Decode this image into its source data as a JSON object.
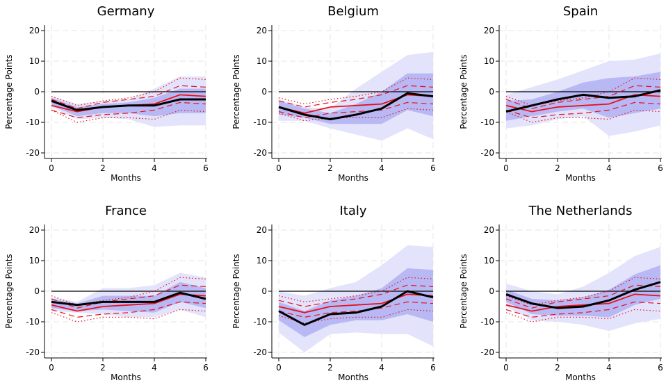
{
  "chart_data": [
    {
      "type": "line",
      "title": "Germany",
      "xlabel": "Months",
      "ylabel": "Percentage Points",
      "xlim": [
        0,
        6
      ],
      "ylim": [
        -20,
        20
      ],
      "xticks": [
        0,
        2,
        4,
        6
      ],
      "yticks": [
        20,
        10,
        0,
        -10,
        -20
      ],
      "x": [
        0,
        1,
        2,
        3,
        4,
        5,
        6
      ],
      "grid": true,
      "legend": "none",
      "series": [
        {
          "role": "wide_band",
          "color": "#e3e3fb",
          "upper": [
            -1.5,
            -4.0,
            -3.0,
            -2.5,
            1.0,
            5.0,
            5.0
          ],
          "lower": [
            -5.0,
            -9.0,
            -8.5,
            -9.0,
            -11.5,
            -11.0,
            -11.0
          ]
        },
        {
          "role": "narrow_band",
          "color": "#b8b8f4",
          "upper": [
            -2.0,
            -5.0,
            -4.0,
            -3.5,
            -2.0,
            1.0,
            1.0
          ],
          "lower": [
            -4.5,
            -8.0,
            -7.0,
            -7.0,
            -8.0,
            -7.0,
            -7.0
          ]
        },
        {
          "role": "red_dotted",
          "color": "#e8101a",
          "values": [
            -1.5,
            -4.5,
            -3.0,
            -2.0,
            0.0,
            4.5,
            4.0
          ],
          "values_lower": [
            -6.0,
            -10.0,
            -8.5,
            -8.5,
            -9.0,
            -6.0,
            -6.5
          ]
        },
        {
          "role": "red_dashed",
          "color": "#e8101a",
          "values": [
            -2.5,
            -5.5,
            -3.5,
            -2.5,
            -1.5,
            2.0,
            1.5
          ],
          "values_lower": [
            -6.0,
            -8.5,
            -7.5,
            -7.0,
            -6.0,
            -3.5,
            -4.0
          ]
        },
        {
          "role": "red_mean",
          "color": "#e8101a",
          "values": [
            -4.5,
            -6.5,
            -5.0,
            -4.5,
            -4.0,
            -1.0,
            -1.5
          ]
        },
        {
          "role": "point_estimate",
          "color": "#000000",
          "values": [
            -3.0,
            -6.0,
            -5.0,
            -4.5,
            -4.5,
            -2.5,
            -2.5
          ]
        }
      ]
    },
    {
      "type": "line",
      "title": "Belgium",
      "xlabel": "Months",
      "ylabel": "Percentage Points",
      "xlim": [
        0,
        6
      ],
      "ylim": [
        -20,
        20
      ],
      "xticks": [
        0,
        2,
        4,
        6
      ],
      "yticks": [
        20,
        10,
        0,
        -10,
        -20
      ],
      "x": [
        0,
        1,
        2,
        3,
        4,
        5,
        6
      ],
      "grid": true,
      "legend": "none",
      "series": [
        {
          "role": "wide_band",
          "color": "#e3e3fb",
          "upper": [
            -2.5,
            -5.0,
            -5.5,
            1.0,
            6.5,
            12.0,
            13.0
          ],
          "lower": [
            -9.5,
            -9.5,
            -12.0,
            -14.0,
            -16.0,
            -12.0,
            -15.5
          ]
        },
        {
          "role": "narrow_band",
          "color": "#b8b8f4",
          "upper": [
            -3.0,
            -5.5,
            -7.0,
            -4.0,
            0.0,
            6.0,
            6.0
          ],
          "lower": [
            -7.5,
            -8.5,
            -10.5,
            -10.5,
            -10.5,
            -6.0,
            -8.0
          ]
        },
        {
          "role": "red_dotted",
          "color": "#e8101a",
          "values": [
            -2.0,
            -4.0,
            -2.5,
            -1.5,
            0.0,
            4.5,
            4.0
          ],
          "values_lower": [
            -7.0,
            -9.5,
            -8.5,
            -8.5,
            -8.5,
            -5.5,
            -6.0
          ]
        },
        {
          "role": "red_dashed",
          "color": "#e8101a",
          "values": [
            -3.0,
            -5.0,
            -3.5,
            -2.5,
            -1.0,
            2.0,
            1.5
          ],
          "values_lower": [
            -6.5,
            -8.5,
            -7.0,
            -6.5,
            -6.0,
            -3.5,
            -4.0
          ]
        },
        {
          "role": "red_mean",
          "color": "#e8101a",
          "values": [
            -5.0,
            -7.0,
            -5.0,
            -4.5,
            -4.0,
            -1.0,
            -1.5
          ]
        },
        {
          "role": "point_estimate",
          "color": "#000000",
          "values": [
            -5.0,
            -7.5,
            -9.0,
            -7.5,
            -5.5,
            -0.5,
            -1.5
          ]
        }
      ]
    },
    {
      "type": "line",
      "title": "Spain",
      "xlabel": "Months",
      "ylabel": "Percentage Points",
      "xlim": [
        0,
        6
      ],
      "ylim": [
        -20,
        20
      ],
      "xticks": [
        0,
        2,
        4,
        6
      ],
      "yticks": [
        20,
        10,
        0,
        -10,
        -20
      ],
      "x": [
        0,
        1,
        2,
        3,
        4,
        5,
        6
      ],
      "grid": true,
      "legend": "none",
      "series": [
        {
          "role": "wide_band",
          "color": "#e3e3fb",
          "upper": [
            -1.0,
            1.5,
            4.0,
            7.0,
            10.0,
            10.5,
            12.5
          ],
          "lower": [
            -12.0,
            -11.0,
            -9.0,
            -8.0,
            -14.5,
            -13.0,
            -11.0
          ]
        },
        {
          "role": "narrow_band",
          "color": "#b8b8f4",
          "upper": [
            -3.0,
            -2.5,
            0.0,
            3.0,
            4.5,
            5.0,
            6.5
          ],
          "lower": [
            -9.5,
            -8.0,
            -6.5,
            -5.5,
            -8.5,
            -7.0,
            -5.5
          ]
        },
        {
          "role": "red_dotted",
          "color": "#e8101a",
          "values": [
            -1.5,
            -4.5,
            -3.0,
            -2.0,
            0.0,
            4.5,
            4.0
          ],
          "values_lower": [
            -6.5,
            -10.0,
            -8.5,
            -8.5,
            -9.0,
            -6.0,
            -6.5
          ]
        },
        {
          "role": "red_dashed",
          "color": "#e8101a",
          "values": [
            -2.5,
            -5.5,
            -3.5,
            -2.5,
            -1.5,
            2.0,
            1.5
          ],
          "values_lower": [
            -6.0,
            -8.5,
            -7.5,
            -7.0,
            -6.0,
            -3.5,
            -4.0
          ]
        },
        {
          "role": "red_mean",
          "color": "#e8101a",
          "values": [
            -4.5,
            -6.5,
            -5.0,
            -4.5,
            -4.0,
            -1.0,
            -1.5
          ]
        },
        {
          "role": "point_estimate",
          "color": "#000000",
          "values": [
            -6.5,
            -4.5,
            -2.5,
            -1.0,
            -2.0,
            -1.5,
            0.5
          ]
        }
      ]
    },
    {
      "type": "line",
      "title": "France",
      "xlabel": "Months",
      "ylabel": "Percentage Points",
      "xlim": [
        0,
        6
      ],
      "ylim": [
        -20,
        20
      ],
      "xticks": [
        0,
        2,
        4,
        6
      ],
      "yticks": [
        20,
        10,
        0,
        -10,
        -20
      ],
      "x": [
        0,
        1,
        2,
        3,
        4,
        5,
        6
      ],
      "grid": true,
      "legend": "none",
      "series": [
        {
          "role": "wide_band",
          "color": "#e3e3fb",
          "upper": [
            -2.0,
            -3.5,
            1.0,
            1.0,
            2.0,
            6.0,
            4.5
          ],
          "lower": [
            -6.5,
            -7.0,
            -7.5,
            -8.5,
            -8.5,
            -6.0,
            -8.5
          ]
        },
        {
          "role": "narrow_band",
          "color": "#b8b8f4",
          "upper": [
            -2.5,
            -4.0,
            -1.5,
            -1.5,
            -1.5,
            3.0,
            1.0
          ],
          "lower": [
            -5.5,
            -6.5,
            -6.0,
            -6.5,
            -7.0,
            -3.5,
            -5.5
          ]
        },
        {
          "role": "red_dotted",
          "color": "#e8101a",
          "values": [
            -1.5,
            -4.5,
            -3.0,
            -2.0,
            0.0,
            4.5,
            4.0
          ],
          "values_lower": [
            -7.0,
            -10.0,
            -8.5,
            -8.5,
            -9.0,
            -6.0,
            -6.5
          ]
        },
        {
          "role": "red_dashed",
          "color": "#e8101a",
          "values": [
            -2.5,
            -5.5,
            -3.5,
            -2.5,
            -1.5,
            2.0,
            1.5
          ],
          "values_lower": [
            -6.0,
            -8.5,
            -7.5,
            -7.0,
            -6.0,
            -3.5,
            -4.0
          ]
        },
        {
          "role": "red_mean",
          "color": "#e8101a",
          "values": [
            -4.5,
            -6.5,
            -5.0,
            -4.5,
            -4.0,
            -1.0,
            -1.5
          ]
        },
        {
          "role": "point_estimate",
          "color": "#000000",
          "values": [
            -3.5,
            -4.5,
            -3.5,
            -3.5,
            -3.5,
            -0.5,
            -2.5
          ]
        }
      ]
    },
    {
      "type": "line",
      "title": "Italy",
      "xlabel": "Months",
      "ylabel": "Percentage Points",
      "xlim": [
        0,
        6
      ],
      "ylim": [
        -20,
        20
      ],
      "xticks": [
        0,
        2,
        4,
        6
      ],
      "yticks": [
        20,
        10,
        0,
        -10,
        -20
      ],
      "x": [
        0,
        1,
        2,
        3,
        4,
        5,
        6
      ],
      "grid": true,
      "legend": "none",
      "series": [
        {
          "role": "wide_band",
          "color": "#e3e3fb",
          "upper": [
            0.0,
            -1.5,
            1.0,
            3.0,
            8.5,
            15.0,
            14.5
          ],
          "lower": [
            -13.5,
            -20.0,
            -14.0,
            -13.5,
            -14.0,
            -14.0,
            -18.0
          ]
        },
        {
          "role": "narrow_band",
          "color": "#b8b8f4",
          "upper": [
            -3.5,
            -6.5,
            -3.0,
            -1.5,
            1.0,
            7.5,
            7.0
          ],
          "lower": [
            -9.5,
            -15.0,
            -11.0,
            -9.5,
            -9.5,
            -7.5,
            -10.0
          ]
        },
        {
          "role": "red_dotted",
          "color": "#e8101a",
          "values": [
            -1.5,
            -3.5,
            -2.5,
            -1.5,
            0.0,
            4.5,
            4.0
          ],
          "values_lower": [
            -8.0,
            -10.5,
            -9.0,
            -8.5,
            -8.5,
            -6.0,
            -6.5
          ]
        },
        {
          "role": "red_dashed",
          "color": "#e8101a",
          "values": [
            -3.0,
            -5.0,
            -3.5,
            -2.5,
            -1.0,
            2.0,
            1.5
          ],
          "values_lower": [
            -6.5,
            -8.5,
            -7.0,
            -6.5,
            -5.5,
            -3.5,
            -4.0
          ]
        },
        {
          "role": "red_mean",
          "color": "#e8101a",
          "values": [
            -5.0,
            -7.0,
            -5.0,
            -4.5,
            -4.0,
            -1.0,
            -1.5
          ]
        },
        {
          "role": "point_estimate",
          "color": "#000000",
          "values": [
            -6.5,
            -11.0,
            -7.5,
            -7.0,
            -5.0,
            0.0,
            -2.0
          ]
        }
      ]
    },
    {
      "type": "line",
      "title": "The Netherlands",
      "xlabel": "Months",
      "ylabel": "Percentage Points",
      "xlim": [
        0,
        6
      ],
      "ylim": [
        -20,
        20
      ],
      "xticks": [
        0,
        2,
        4,
        6
      ],
      "yticks": [
        20,
        10,
        0,
        -10,
        -20
      ],
      "x": [
        0,
        1,
        2,
        3,
        4,
        5,
        6
      ],
      "grid": true,
      "legend": "none",
      "series": [
        {
          "role": "wide_band",
          "color": "#e3e3fb",
          "upper": [
            2.5,
            0.0,
            -1.0,
            1.5,
            6.0,
            11.5,
            14.5
          ],
          "lower": [
            -5.0,
            -9.5,
            -10.0,
            -11.0,
            -13.0,
            -10.5,
            -9.0
          ]
        },
        {
          "role": "narrow_band",
          "color": "#b8b8f4",
          "upper": [
            0.5,
            -2.5,
            -3.0,
            -2.0,
            0.5,
            5.5,
            8.5
          ],
          "lower": [
            -3.5,
            -7.5,
            -8.0,
            -8.0,
            -8.5,
            -4.5,
            -2.5
          ]
        },
        {
          "role": "red_dotted",
          "color": "#e8101a",
          "values": [
            -1.5,
            -4.5,
            -3.0,
            -2.0,
            0.0,
            4.5,
            4.0
          ],
          "values_lower": [
            -7.0,
            -10.0,
            -8.5,
            -8.5,
            -9.0,
            -6.0,
            -6.5
          ]
        },
        {
          "role": "red_dashed",
          "color": "#e8101a",
          "values": [
            -2.5,
            -5.5,
            -3.5,
            -2.5,
            -1.5,
            2.0,
            1.5
          ],
          "values_lower": [
            -6.0,
            -8.5,
            -7.5,
            -7.0,
            -6.0,
            -3.5,
            -4.0
          ]
        },
        {
          "role": "red_mean",
          "color": "#e8101a",
          "values": [
            -4.5,
            -6.5,
            -5.0,
            -4.5,
            -4.0,
            -1.0,
            -1.5
          ]
        },
        {
          "role": "point_estimate",
          "color": "#000000",
          "values": [
            -1.0,
            -4.0,
            -5.5,
            -5.0,
            -3.0,
            0.5,
            3.0
          ]
        }
      ]
    }
  ]
}
